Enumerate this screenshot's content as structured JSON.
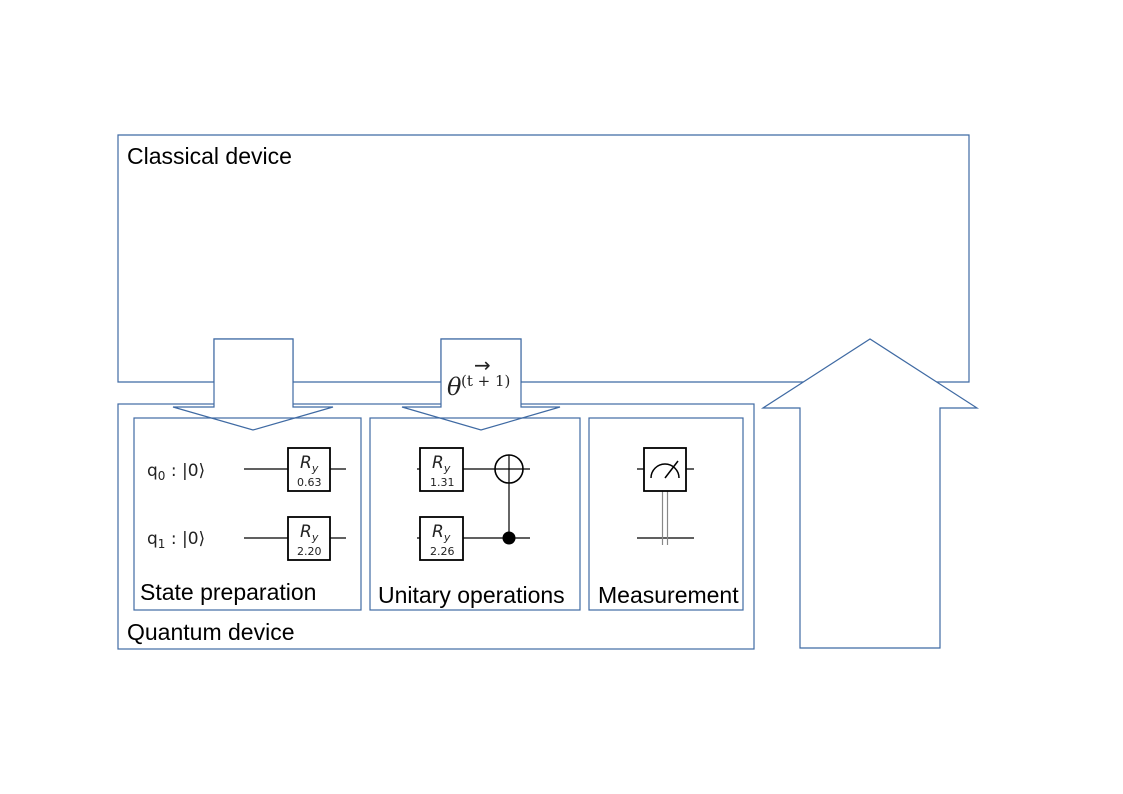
{
  "classical_device": {
    "label": "Classical device"
  },
  "quantum_device": {
    "label": "Quantum device"
  },
  "parameter_label": {
    "symbol": "θ",
    "superscript": "(t + 1)",
    "arrow": "→"
  },
  "state_preparation": {
    "label": "State preparation",
    "qubits": [
      {
        "name": "q",
        "index": "0",
        "state": " : |0⟩"
      },
      {
        "name": "q",
        "index": "1",
        "state": " : |0⟩"
      }
    ],
    "gates": [
      {
        "name": "R",
        "sub": "y",
        "value": "0.63"
      },
      {
        "name": "R",
        "sub": "y",
        "value": "2.20"
      }
    ]
  },
  "unitary_operations": {
    "label": "Unitary operations",
    "gates": [
      {
        "name": "R",
        "sub": "y",
        "value": "1.31"
      },
      {
        "name": "R",
        "sub": "y",
        "value": "2.26"
      }
    ]
  },
  "measurement": {
    "label": "Measurement"
  }
}
